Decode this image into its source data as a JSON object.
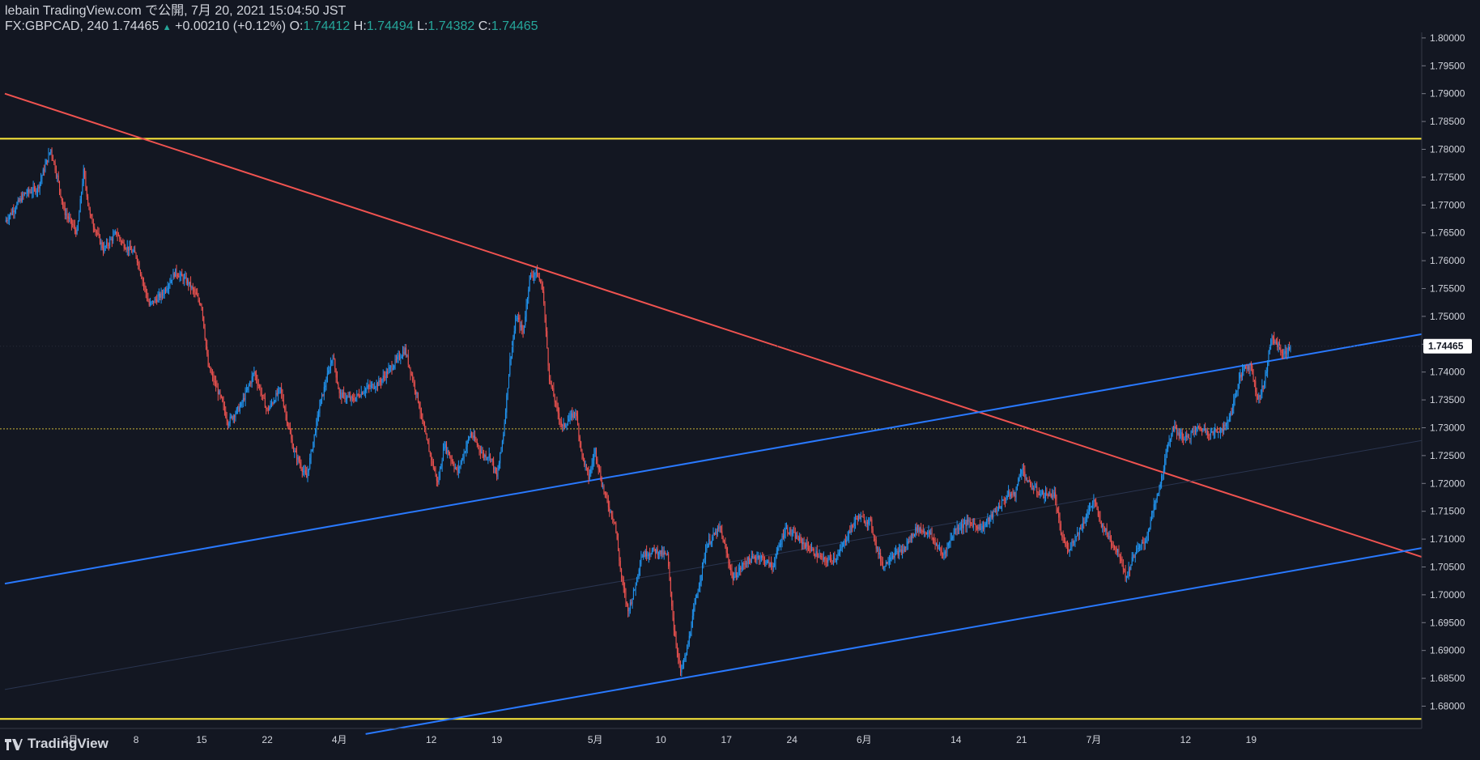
{
  "header": {
    "line1": "lebain TradingView.com で公開, 7月 20, 2021 15:04:50 JST",
    "symbol": "FX:GBPCAD, 240",
    "last": "1.74465",
    "change": "+0.00210 (+0.12%)",
    "o_label": "O:",
    "o_value": "1.74412",
    "h_label": "H:",
    "h_value": "1.74494",
    "l_label": "L:",
    "l_value": "1.74382",
    "c_label": "C:",
    "c_value": "1.74465"
  },
  "brand": {
    "name": "TradingView",
    "icon": "tradingview-logo-icon"
  },
  "colors": {
    "bg": "#131722",
    "up": "#2196f3",
    "down": "#ef5350",
    "yellow": "#ffeb3b",
    "trend_red": "#f05350",
    "channel_blue": "#2979ff",
    "axis_text": "#d1d4dc"
  },
  "chart_data": {
    "type": "candlestick",
    "symbol": "FX:GBPCAD",
    "ylim": [
      1.676,
      1.801
    ],
    "price_ticks": [
      "1.80000",
      "1.79500",
      "1.79000",
      "1.78500",
      "1.78000",
      "1.77500",
      "1.77000",
      "1.76500",
      "1.76000",
      "1.75500",
      "1.75000",
      "1.74500",
      "1.74000",
      "1.73500",
      "1.73000",
      "1.72500",
      "1.72000",
      "1.71500",
      "1.71000",
      "1.70500",
      "1.70000",
      "1.69500",
      "1.69000",
      "1.68500",
      "1.68000"
    ],
    "price_tick_values": [
      1.8,
      1.795,
      1.79,
      1.785,
      1.78,
      1.775,
      1.77,
      1.765,
      1.76,
      1.755,
      1.75,
      1.745,
      1.74,
      1.735,
      1.73,
      1.725,
      1.72,
      1.715,
      1.71,
      1.705,
      1.7,
      1.695,
      1.69,
      1.685,
      1.68
    ],
    "current_price_label": "1.74465",
    "current_price": 1.74465,
    "x_range": [
      -3,
      213
    ],
    "date_ticks": [
      {
        "label": "3月",
        "x": 7
      },
      {
        "label": "8",
        "x": 17
      },
      {
        "label": "15",
        "x": 27
      },
      {
        "label": "22",
        "x": 37
      },
      {
        "label": "4月",
        "x": 48
      },
      {
        "label": "12",
        "x": 62
      },
      {
        "label": "19",
        "x": 72
      },
      {
        "label": "5月",
        "x": 87
      },
      {
        "label": "10",
        "x": 97
      },
      {
        "label": "17",
        "x": 107
      },
      {
        "label": "24",
        "x": 117
      },
      {
        "label": "6月",
        "x": 128
      },
      {
        "label": "14",
        "x": 142
      },
      {
        "label": "21",
        "x": 152
      },
      {
        "label": "7月",
        "x": 163
      },
      {
        "label": "12",
        "x": 177
      },
      {
        "label": "19",
        "x": 187
      }
    ],
    "path_anchors": [
      [
        -3,
        1.767
      ],
      [
        0,
        1.772
      ],
      [
        2,
        1.773
      ],
      [
        4,
        1.78
      ],
      [
        5,
        1.775
      ],
      [
        6,
        1.769
      ],
      [
        8,
        1.765
      ],
      [
        9,
        1.776
      ],
      [
        10,
        1.768
      ],
      [
        12,
        1.762
      ],
      [
        14,
        1.765
      ],
      [
        15,
        1.763
      ],
      [
        17,
        1.761
      ],
      [
        19,
        1.752
      ],
      [
        21,
        1.754
      ],
      [
        23,
        1.758
      ],
      [
        25,
        1.756
      ],
      [
        27,
        1.752
      ],
      [
        28,
        1.741
      ],
      [
        30,
        1.735
      ],
      [
        31,
        1.731
      ],
      [
        33,
        1.734
      ],
      [
        35,
        1.74
      ],
      [
        37,
        1.733
      ],
      [
        39,
        1.737
      ],
      [
        41,
        1.726
      ],
      [
        43,
        1.721
      ],
      [
        45,
        1.734
      ],
      [
        47,
        1.743
      ],
      [
        48,
        1.736
      ],
      [
        50,
        1.735
      ],
      [
        52,
        1.737
      ],
      [
        54,
        1.738
      ],
      [
        56,
        1.741
      ],
      [
        58,
        1.744
      ],
      [
        60,
        1.735
      ],
      [
        61,
        1.729
      ],
      [
        63,
        1.72
      ],
      [
        64,
        1.727
      ],
      [
        66,
        1.722
      ],
      [
        68,
        1.729
      ],
      [
        70,
        1.725
      ],
      [
        71,
        1.725
      ],
      [
        72,
        1.721
      ],
      [
        73,
        1.729
      ],
      [
        74,
        1.742
      ],
      [
        75,
        1.75
      ],
      [
        76,
        1.747
      ],
      [
        77,
        1.757
      ],
      [
        78,
        1.758
      ],
      [
        79,
        1.755
      ],
      [
        80,
        1.739
      ],
      [
        81,
        1.734
      ],
      [
        82,
        1.73
      ],
      [
        84,
        1.733
      ],
      [
        85,
        1.725
      ],
      [
        86,
        1.721
      ],
      [
        87,
        1.726
      ],
      [
        88,
        1.72
      ],
      [
        89,
        1.716
      ],
      [
        90,
        1.713
      ],
      [
        91,
        1.703
      ],
      [
        92,
        1.697
      ],
      [
        93,
        1.701
      ],
      [
        94,
        1.707
      ],
      [
        96,
        1.708
      ],
      [
        98,
        1.707
      ],
      [
        99,
        1.694
      ],
      [
        100,
        1.686
      ],
      [
        101,
        1.69
      ],
      [
        102,
        1.697
      ],
      [
        103,
        1.703
      ],
      [
        104,
        1.709
      ],
      [
        106,
        1.712
      ],
      [
        108,
        1.703
      ],
      [
        110,
        1.706
      ],
      [
        112,
        1.707
      ],
      [
        114,
        1.705
      ],
      [
        116,
        1.712
      ],
      [
        118,
        1.71
      ],
      [
        120,
        1.708
      ],
      [
        122,
        1.706
      ],
      [
        124,
        1.707
      ],
      [
        126,
        1.712
      ],
      [
        127,
        1.714
      ],
      [
        129,
        1.713
      ],
      [
        130,
        1.708
      ],
      [
        131,
        1.705
      ],
      [
        132,
        1.707
      ],
      [
        134,
        1.708
      ],
      [
        136,
        1.712
      ],
      [
        138,
        1.711
      ],
      [
        140,
        1.707
      ],
      [
        142,
        1.712
      ],
      [
        144,
        1.713
      ],
      [
        146,
        1.712
      ],
      [
        148,
        1.715
      ],
      [
        150,
        1.718
      ],
      [
        151,
        1.718
      ],
      [
        152,
        1.723
      ],
      [
        153,
        1.72
      ],
      [
        155,
        1.718
      ],
      [
        157,
        1.718
      ],
      [
        158,
        1.711
      ],
      [
        159,
        1.708
      ],
      [
        161,
        1.712
      ],
      [
        163,
        1.717
      ],
      [
        164,
        1.713
      ],
      [
        165,
        1.711
      ],
      [
        167,
        1.707
      ],
      [
        168,
        1.703
      ],
      [
        169,
        1.707
      ],
      [
        171,
        1.71
      ],
      [
        172,
        1.715
      ],
      [
        173,
        1.719
      ],
      [
        174,
        1.725
      ],
      [
        175,
        1.73
      ],
      [
        177,
        1.728
      ],
      [
        179,
        1.73
      ],
      [
        181,
        1.729
      ],
      [
        183,
        1.73
      ],
      [
        184,
        1.733
      ],
      [
        185,
        1.738
      ],
      [
        186,
        1.741
      ],
      [
        187,
        1.741
      ],
      [
        188,
        1.735
      ],
      [
        189,
        1.738
      ],
      [
        190,
        1.746
      ],
      [
        191,
        1.745
      ],
      [
        192,
        1.743
      ],
      [
        193,
        1.7447
      ]
    ],
    "horizontal_lines": [
      {
        "price": 1.7819,
        "color": "#ffeb3b",
        "style": "solid"
      },
      {
        "price": 1.6777,
        "color": "#ffeb3b",
        "style": "solid"
      },
      {
        "price": 1.7298,
        "color": "#c9b23a",
        "style": "dotted"
      }
    ],
    "trend_lines": [
      {
        "name": "downtrend",
        "color": "#f05350",
        "points": [
          [
            -3,
            1.79
          ],
          [
            213,
            1.7068
          ]
        ]
      },
      {
        "name": "channel-top",
        "color": "#2979ff",
        "points": [
          [
            -3,
            1.702
          ],
          [
            213,
            1.7468
          ]
        ]
      },
      {
        "name": "channel-bottom",
        "color": "#2979ff",
        "points": [
          [
            52,
            1.675
          ],
          [
            213,
            1.7084
          ]
        ]
      },
      {
        "name": "channel-mid",
        "color": "#2a3550",
        "points": [
          [
            -3,
            1.683
          ],
          [
            213,
            1.7277
          ]
        ]
      }
    ]
  }
}
